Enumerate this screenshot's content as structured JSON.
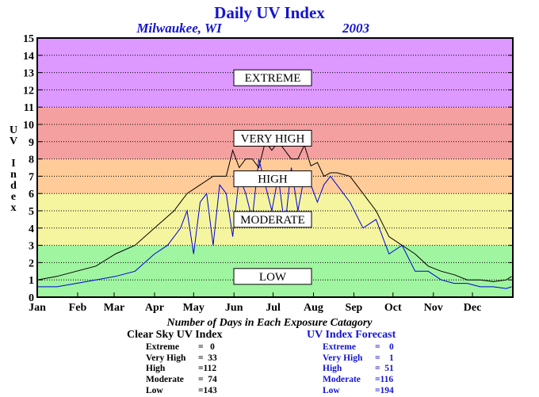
{
  "chart_data": {
    "type": "line",
    "title": "Daily UV Index",
    "subtitle_location": "Milwaukee, WI",
    "subtitle_year": "2003",
    "ylabel": "UV Index",
    "ylim": [
      0,
      15
    ],
    "xlim": [
      0,
      365
    ],
    "y_ticks": [
      "0",
      "1",
      "2",
      "3",
      "4",
      "5",
      "6",
      "7",
      "8",
      "9",
      "10",
      "11",
      "12",
      "13",
      "14",
      "15"
    ],
    "x_tick_labels": [
      "Jan",
      "Feb",
      "Mar",
      "Apr",
      "May",
      "Jun",
      "Jul",
      "Aug",
      "Sep",
      "Oct",
      "Nov",
      "Dec"
    ],
    "grid": true,
    "zones": [
      {
        "label": "LOW",
        "from": 0,
        "to": 3,
        "color": "#a0f5a0"
      },
      {
        "label": "MODERATE",
        "from": 3,
        "to": 6,
        "color": "#f5f5a0"
      },
      {
        "label": "HIGH",
        "from": 6,
        "to": 8,
        "color": "#ffcc99"
      },
      {
        "label": "VERY HIGH",
        "from": 8,
        "to": 11,
        "color": "#f5a0a0"
      },
      {
        "label": "EXTREME",
        "from": 11,
        "to": 15,
        "color": "#dd99ff"
      }
    ],
    "series": [
      {
        "color": "#000000",
        "x": [
          0,
          15,
          30,
          45,
          60,
          75,
          90,
          105,
          115,
          125,
          135,
          145,
          150,
          155,
          160,
          165,
          170,
          175,
          180,
          185,
          190,
          195,
          200,
          205,
          210,
          215,
          220,
          225,
          230,
          240,
          250,
          260,
          270,
          280,
          290,
          300,
          310,
          320,
          330,
          340,
          350,
          360,
          364
        ],
        "y": [
          1.0,
          1.2,
          1.5,
          1.8,
          2.5,
          3.0,
          4.0,
          5.0,
          6.0,
          6.5,
          7.0,
          7.0,
          8.5,
          7.5,
          8.0,
          8.0,
          7.5,
          9.0,
          8.5,
          9.0,
          8.5,
          8.0,
          8.0,
          8.8,
          7.6,
          7.8,
          7.0,
          7.2,
          7.2,
          7.0,
          6.0,
          5.0,
          3.5,
          3.0,
          2.5,
          1.8,
          1.5,
          1.3,
          1.0,
          1.0,
          0.9,
          1.0,
          1.2
        ]
      },
      {
        "color": "#0000dd",
        "x": [
          0,
          15,
          30,
          45,
          60,
          75,
          90,
          100,
          110,
          115,
          120,
          125,
          130,
          135,
          140,
          145,
          150,
          155,
          160,
          165,
          170,
          175,
          180,
          185,
          190,
          195,
          200,
          205,
          210,
          215,
          220,
          225,
          230,
          240,
          250,
          260,
          270,
          280,
          290,
          300,
          310,
          320,
          330,
          340,
          350,
          360,
          364
        ],
        "y": [
          0.6,
          0.6,
          0.8,
          1.0,
          1.2,
          1.5,
          2.5,
          3.0,
          4.0,
          5.0,
          2.5,
          5.5,
          6.0,
          3.0,
          6.5,
          6.0,
          3.5,
          7.0,
          6.0,
          4.5,
          8.0,
          6.5,
          5.0,
          7.0,
          4.0,
          7.5,
          5.0,
          7.0,
          6.5,
          5.5,
          6.5,
          7.0,
          6.5,
          5.5,
          4.0,
          4.5,
          2.5,
          3.0,
          1.5,
          1.5,
          1.0,
          0.8,
          0.8,
          0.6,
          0.6,
          0.5,
          0.6
        ]
      }
    ],
    "caption": "Number of Days in Each Exposure Catagory",
    "clear_sky": {
      "title": "Clear Sky UV Index",
      "rows": [
        {
          "label": "Extreme",
          "value": "=   0"
        },
        {
          "label": "Very High",
          "value": "=  33"
        },
        {
          "label": "High",
          "value": "=112"
        },
        {
          "label": "Moderate",
          "value": "=  74"
        },
        {
          "label": "Low",
          "value": "=143"
        }
      ]
    },
    "forecast": {
      "title": "UV Index Forecast",
      "rows": [
        {
          "label": "Extreme",
          "value": "=    0"
        },
        {
          "label": "Very High",
          "value": "=    1"
        },
        {
          "label": "High",
          "value": "=  51"
        },
        {
          "label": "Moderate",
          "value": "=116"
        },
        {
          "label": "Low",
          "value": "=194"
        }
      ]
    }
  }
}
